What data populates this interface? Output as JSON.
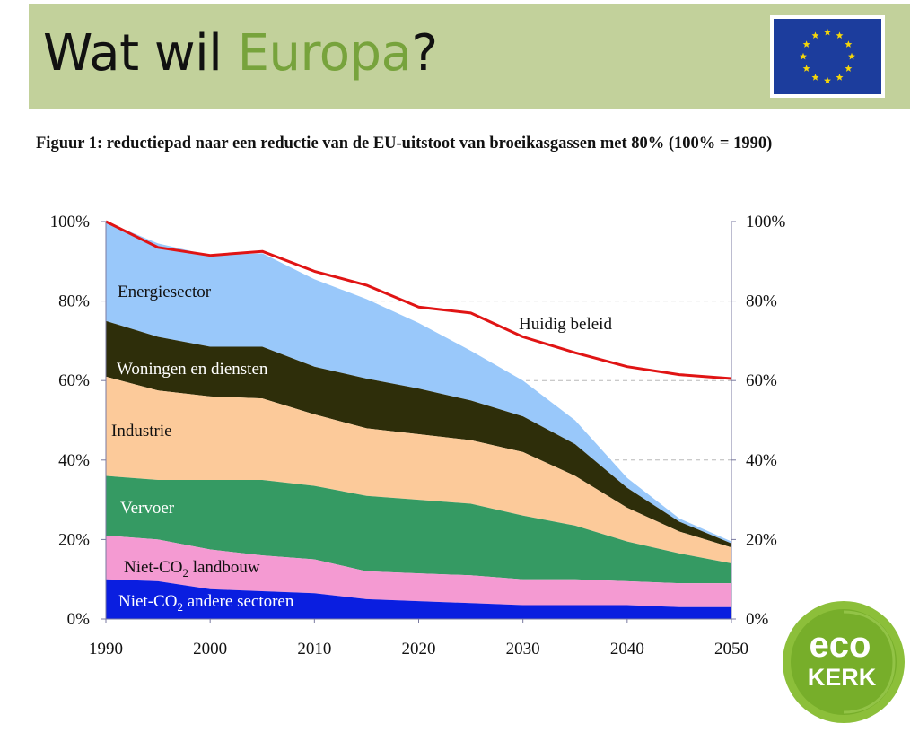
{
  "header": {
    "title_prefix": "Wat wil ",
    "title_accent": "Europa",
    "title_suffix": "?",
    "accent_color": "#77a33c",
    "background_color": "#c2d19b",
    "flag_icon": "eu-flag-icon"
  },
  "figure_title": "Figuur 1: reductiepad naar een reductie van de EU-uitstoot van broeikasgassen met 80% (100% = 1990)",
  "logo": {
    "icon": "eco-kerk-logo",
    "line1": "eco",
    "line2": "KERK"
  },
  "chart_data": {
    "type": "area",
    "x": [
      1990,
      1995,
      2000,
      2005,
      2010,
      2015,
      2020,
      2025,
      2030,
      2035,
      2040,
      2045,
      2050
    ],
    "xlim": [
      1990,
      2050
    ],
    "ylim": [
      0,
      100
    ],
    "yunit": "%",
    "x_ticks": [
      1990,
      2000,
      2010,
      2020,
      2030,
      2040,
      2050
    ],
    "y_ticks_left": [
      "0%",
      "20%",
      "40%",
      "60%",
      "80%",
      "100%"
    ],
    "y_ticks_right": [
      "0%",
      "20%",
      "40%",
      "60%",
      "80%",
      "100%"
    ],
    "y_tick_values": [
      0,
      20,
      40,
      60,
      80,
      100
    ],
    "grid": "dashed horizontal lines at 40%, 60%, 80% beyond the stacked area",
    "stack_order_bottom_to_top": [
      "Niet-CO2 andere sectoren",
      "Niet-CO2 landbouw",
      "Vervoer",
      "Industrie",
      "Woningen en diensten",
      "Energiesector"
    ],
    "series": [
      {
        "name": "Niet-CO2 andere sectoren",
        "label_main": "Niet-CO",
        "label_sub": "2",
        "label_rest": " andere sectoren",
        "color": "#0a1ee0",
        "values": [
          10,
          9.5,
          7.5,
          7,
          6.5,
          5,
          4.5,
          4,
          3.5,
          3.5,
          3.5,
          3,
          3
        ]
      },
      {
        "name": "Niet-CO2 landbouw",
        "label_main": "Niet-CO",
        "label_sub": "2",
        "label_rest": " landbouw",
        "color": "#f49ad2",
        "values": [
          11,
          10.5,
          10,
          9,
          8.5,
          7,
          7,
          7,
          6.5,
          6.5,
          6,
          6,
          6
        ]
      },
      {
        "name": "Vervoer",
        "label": "Vervoer",
        "color": "#359a63",
        "values": [
          15,
          15,
          17.5,
          19,
          18.5,
          19,
          18.5,
          18,
          16,
          13.5,
          10,
          7.5,
          5
        ]
      },
      {
        "name": "Industrie",
        "label": "Industrie",
        "color": "#fcca9a",
        "values": [
          25,
          22.5,
          21,
          20.5,
          18,
          17,
          16.5,
          16,
          16,
          12.5,
          8.5,
          5.5,
          4
        ]
      },
      {
        "name": "Woningen en diensten",
        "label": "Woningen en diensten",
        "color": "#2e2e0a",
        "values": [
          14,
          13.5,
          12.5,
          13,
          12,
          12.5,
          11.5,
          10,
          9,
          8,
          5,
          2.5,
          1
        ]
      },
      {
        "name": "Energiesector",
        "label": "Energiesector",
        "color": "#99c8fa",
        "values": [
          25,
          23.5,
          23,
          23.5,
          22,
          20,
          16.5,
          12.5,
          9,
          6,
          2.5,
          0.8,
          0.5
        ]
      }
    ],
    "line": {
      "name": "Huidig beleid",
      "label": "Huidig beleid",
      "color": "#e01414",
      "values": [
        100,
        93.5,
        91.5,
        92.5,
        87.5,
        84,
        78.5,
        77,
        71,
        67,
        63.5,
        61.5,
        60.5
      ]
    }
  }
}
